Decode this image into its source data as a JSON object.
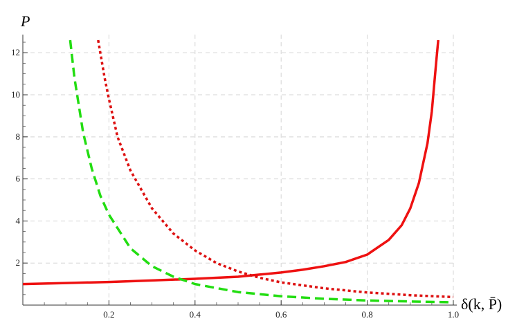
{
  "chart_data": {
    "type": "line",
    "title": "",
    "xlabel": "δ(k, P̄)",
    "ylabel": "P",
    "xlim": [
      0,
      1.0
    ],
    "ylim": [
      0,
      12.6
    ],
    "grid": true,
    "legend": "none",
    "x_ticks": [
      "0.2",
      "0.4",
      "0.6",
      "0.8",
      "1.0"
    ],
    "y_ticks": [
      "2",
      "4",
      "6",
      "8",
      "10",
      "12"
    ],
    "series": [
      {
        "style": "solid",
        "color": "#ee1111",
        "x": [
          0.0,
          0.1,
          0.2,
          0.3,
          0.4,
          0.5,
          0.55,
          0.6,
          0.65,
          0.7,
          0.75,
          0.8,
          0.85,
          0.88,
          0.9,
          0.92,
          0.94,
          0.95,
          0.96,
          0.965
        ],
        "y": [
          1.0,
          1.05,
          1.1,
          1.17,
          1.25,
          1.35,
          1.45,
          1.55,
          1.68,
          1.85,
          2.05,
          2.4,
          3.1,
          3.8,
          4.6,
          5.8,
          7.7,
          9.2,
          11.5,
          12.6
        ]
      },
      {
        "style": "dashed",
        "color": "#22dd11",
        "x": [
          0.11,
          0.12,
          0.14,
          0.16,
          0.18,
          0.2,
          0.25,
          0.3,
          0.35,
          0.4,
          0.5,
          0.6,
          0.7,
          0.8,
          0.9,
          1.0
        ],
        "y": [
          12.6,
          10.8,
          8.2,
          6.5,
          5.2,
          4.3,
          2.7,
          1.85,
          1.35,
          1.0,
          0.62,
          0.42,
          0.3,
          0.22,
          0.17,
          0.13
        ]
      },
      {
        "style": "dotted",
        "color": "#dd1111",
        "x": [
          0.175,
          0.19,
          0.2,
          0.22,
          0.25,
          0.3,
          0.35,
          0.4,
          0.45,
          0.5,
          0.55,
          0.6,
          0.7,
          0.8,
          0.9,
          1.0
        ],
        "y": [
          12.6,
          10.8,
          9.8,
          8.0,
          6.4,
          4.6,
          3.4,
          2.6,
          2.0,
          1.6,
          1.3,
          1.08,
          0.8,
          0.6,
          0.47,
          0.38
        ]
      }
    ]
  }
}
